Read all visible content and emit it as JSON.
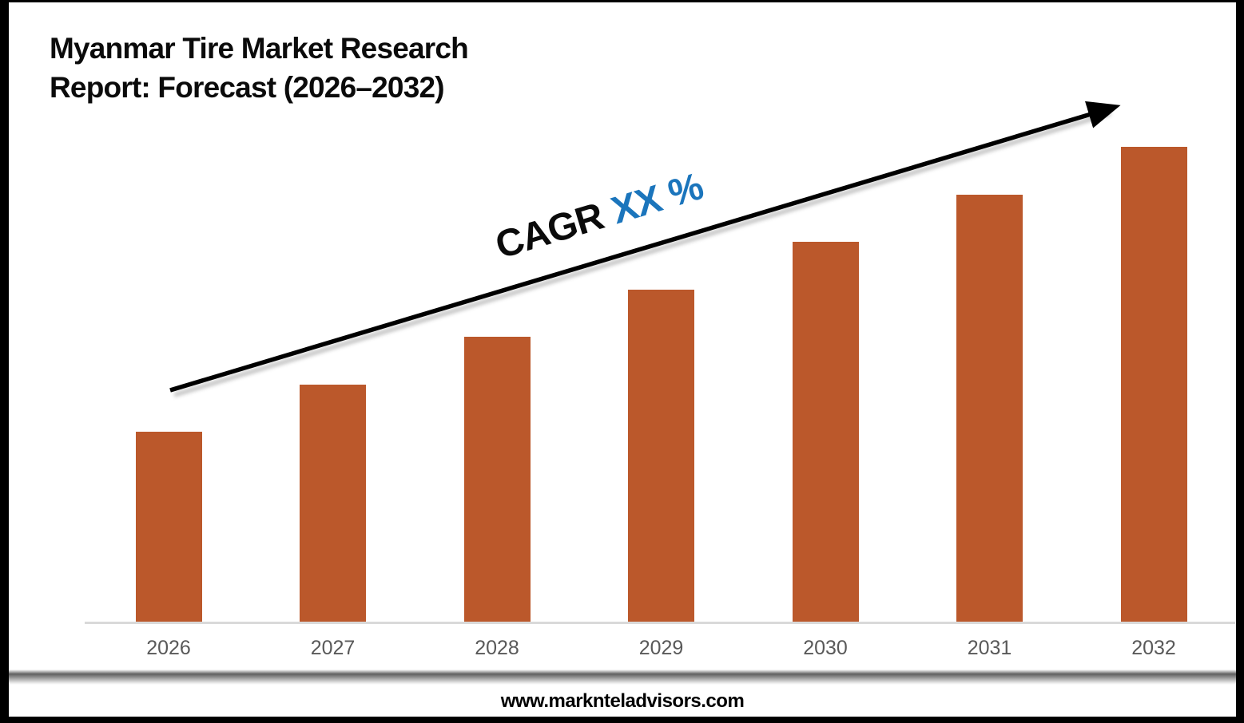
{
  "title": {
    "line1": "Myanmar Tire Market Research",
    "line2": "Report: Forecast (2026–2032)"
  },
  "cagr": {
    "prefix": "CAGR",
    "value": "XX %"
  },
  "footer": {
    "website": "www.marknteladvisors.com"
  },
  "colors": {
    "bar": "#BB582B",
    "cagr_prefix": "#0b0b0b",
    "cagr_value": "#1B75BC",
    "axis_line": "#D9D9D9",
    "tick_label": "#595959",
    "arrow": "#000000"
  },
  "chart_data": {
    "type": "bar",
    "title": "Myanmar Tire Market Research Report: Forecast (2026–2032)",
    "categories": [
      "2026",
      "2027",
      "2028",
      "2029",
      "2030",
      "2031",
      "2032"
    ],
    "values": [
      4,
      5,
      6,
      7,
      8,
      9,
      10
    ],
    "value_note": "relative units; no y-axis or data labels shown (placeholder forecast chart)",
    "xlabel": "",
    "ylabel": "",
    "ylim": [
      0,
      13
    ],
    "y_axis_visible": false,
    "gridlines": false,
    "legend": false,
    "bar_color": "#BB582B",
    "annotation": "CAGR XX %",
    "trend_arrow": "rising left-to-right"
  }
}
